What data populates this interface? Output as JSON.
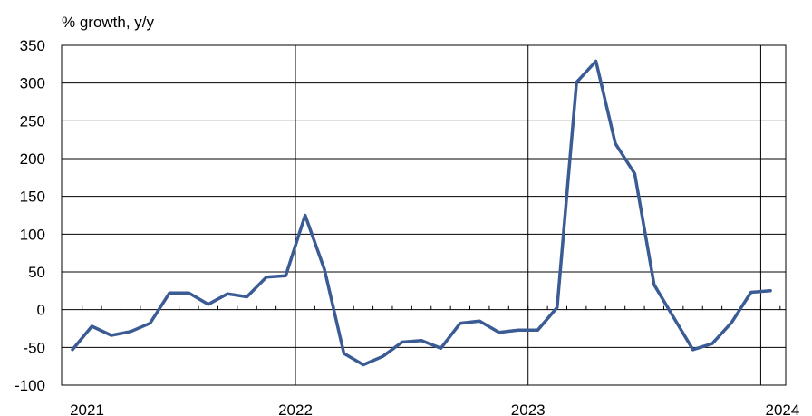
{
  "chart_data": {
    "type": "line",
    "ylabel": "% growth,  y/y",
    "ylim": [
      -100,
      350
    ],
    "yticks": [
      350,
      300,
      250,
      200,
      150,
      100,
      50,
      0,
      -50,
      -100
    ],
    "xticks": [
      "2021",
      "2022",
      "2023",
      "2024"
    ],
    "xrange": [
      "2021-01",
      "2024-01"
    ],
    "grid": true,
    "line_color": "#3b5b94",
    "series": [
      {
        "x": [
          "2021-01",
          "2021-02",
          "2021-03",
          "2021-04",
          "2021-05",
          "2021-06",
          "2021-07",
          "2021-08",
          "2021-09",
          "2021-10",
          "2021-11",
          "2021-12",
          "2022-01",
          "2022-02",
          "2022-03",
          "2022-04",
          "2022-05",
          "2022-06",
          "2022-07",
          "2022-08",
          "2022-09",
          "2022-10",
          "2022-11",
          "2022-12",
          "2023-01",
          "2023-02",
          "2023-03",
          "2023-04",
          "2023-05",
          "2023-06",
          "2023-07",
          "2023-08",
          "2023-09",
          "2023-10",
          "2023-11",
          "2023-12",
          "2024-01"
        ],
        "values": [
          -53,
          -22,
          -34,
          -29,
          -18,
          22,
          22,
          7,
          21,
          17,
          43,
          45,
          125,
          53,
          -58,
          -73,
          -62,
          -43,
          -41,
          -51,
          -18,
          -15,
          -30,
          -27,
          -27,
          3,
          301,
          329,
          220,
          180,
          33,
          -10,
          -53,
          -45,
          -17,
          23,
          25
        ]
      }
    ]
  }
}
